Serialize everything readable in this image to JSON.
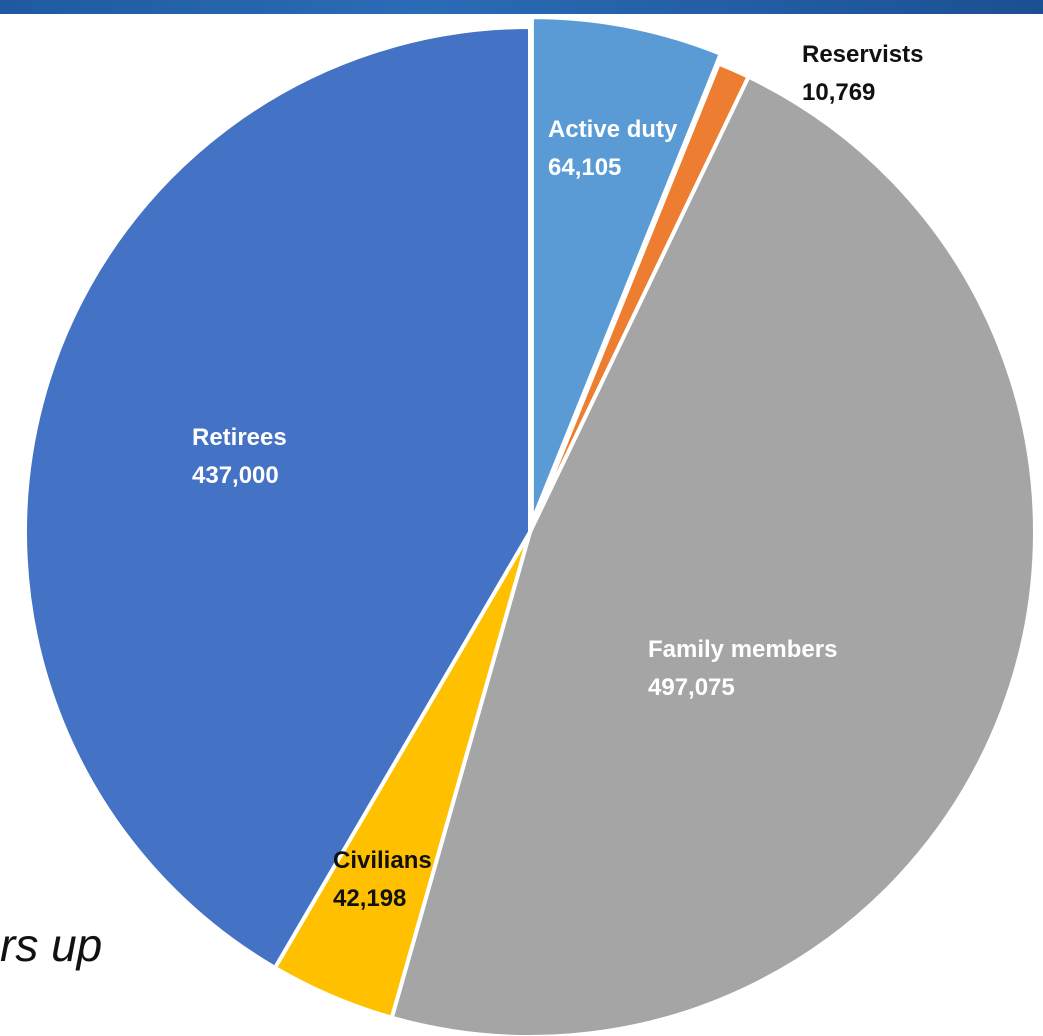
{
  "fragment_text": "rs up",
  "chart_data": {
    "type": "pie",
    "slices": [
      {
        "category": "Active duty",
        "value": 64105,
        "value_label": "64,105",
        "color": "#5b9bd5",
        "label_color": "#ffffff",
        "exploded": true
      },
      {
        "category": "Reservists",
        "value": 10769,
        "value_label": "10,769",
        "color": "#ed7d31",
        "label_color": "#111111",
        "exploded": false
      },
      {
        "category": "Family members",
        "value": 497075,
        "value_label": "497,075",
        "color": "#a5a5a5",
        "label_color": "#ffffff",
        "exploded": false
      },
      {
        "category": "Civilians",
        "value": 42198,
        "value_label": "42,198",
        "color": "#ffc000",
        "label_color": "#111111",
        "exploded": false
      },
      {
        "category": "Retirees",
        "value": 437000,
        "value_label": "437,000",
        "color": "#4472c4",
        "label_color": "#ffffff",
        "exploded": false
      }
    ],
    "start_angle": "12 o'clock",
    "direction": "clockwise",
    "legend": "none"
  }
}
